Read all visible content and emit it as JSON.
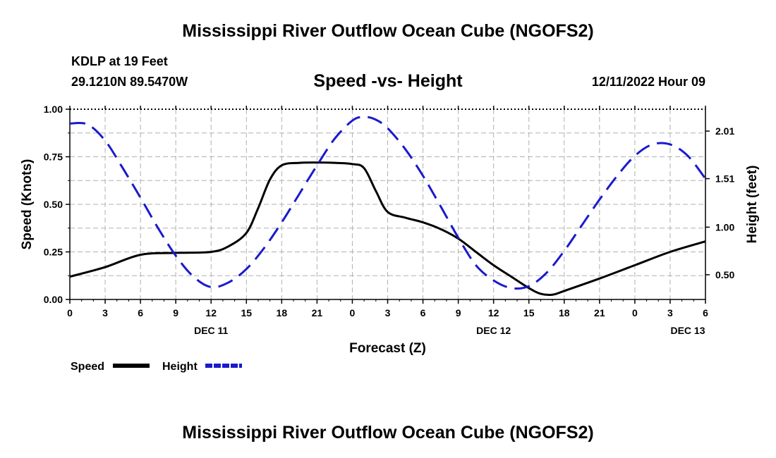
{
  "header": {
    "title": "Mississippi River Outflow Ocean Cube (NGOFS2)",
    "station": "KDLP at 19 Feet",
    "coordinates": "29.1210N  89.5470W",
    "subtitle": "Speed -vs- Height",
    "timestamp": "12/11/2022 Hour 09"
  },
  "footer": {
    "title": "Mississippi River Outflow Ocean Cube (NGOFS2)"
  },
  "colors": {
    "speed": "#000000",
    "height": "#1a1acc",
    "grid": "#b0b0b0"
  },
  "chart_data": {
    "type": "line",
    "title": "Speed -vs- Height",
    "xlabel": "Forecast (Z)",
    "ylabel_left": "Speed (Knots)",
    "ylabel_right": "Height (feet)",
    "xlim": [
      0,
      54
    ],
    "ylim_left": [
      0,
      1.0
    ],
    "ylim_right": [
      0.24,
      2.24
    ],
    "grid": true,
    "x_ticks": [
      0,
      3,
      6,
      9,
      12,
      15,
      18,
      21,
      24,
      27,
      30,
      33,
      36,
      39,
      42,
      45,
      48,
      51,
      54
    ],
    "x_tick_labels": [
      "0",
      "3",
      "6",
      "9",
      "12",
      "15",
      "18",
      "21",
      "0",
      "3",
      "6",
      "9",
      "12",
      "15",
      "18",
      "21",
      "0",
      "3",
      "6"
    ],
    "day_labels": [
      {
        "x": 12,
        "label": "DEC 11"
      },
      {
        "x": 36,
        "label": "DEC 12"
      },
      {
        "x": 52.5,
        "label": "DEC 13"
      }
    ],
    "y_left_ticks": [
      0,
      0.25,
      0.5,
      0.75,
      1.0
    ],
    "y_left_tick_labels": [
      "0.00",
      "0.25",
      "0.50",
      "0.75",
      "1.00"
    ],
    "y_right_ticks": [
      0.5,
      1.0,
      1.51,
      2.01
    ],
    "y_right_tick_labels": [
      "0.50",
      "1.00",
      "1.51",
      "2.01"
    ],
    "legend": [
      {
        "name": "Speed",
        "style": "solid"
      },
      {
        "name": "Height",
        "style": "dashed"
      }
    ],
    "series": [
      {
        "name": "Speed",
        "axis": "left",
        "style": "solid",
        "x": [
          0,
          3,
          6,
          9,
          12,
          13.5,
          15,
          16,
          17,
          18,
          19.5,
          21,
          22.5,
          24,
          25,
          26,
          27,
          28.5,
          30,
          31.5,
          33,
          34.5,
          36,
          37.5,
          39,
          40,
          41,
          42,
          45,
          48,
          51,
          54
        ],
        "values": [
          0.12,
          0.17,
          0.235,
          0.245,
          0.25,
          0.28,
          0.35,
          0.48,
          0.63,
          0.705,
          0.718,
          0.72,
          0.718,
          0.712,
          0.69,
          0.57,
          0.46,
          0.43,
          0.405,
          0.37,
          0.32,
          0.25,
          0.18,
          0.12,
          0.06,
          0.03,
          0.025,
          0.045,
          0.11,
          0.18,
          0.25,
          0.305
        ]
      },
      {
        "name": "Height",
        "axis": "right",
        "style": "dashed",
        "x": [
          0,
          1.5,
          3,
          4.5,
          6,
          7.5,
          9,
          10.5,
          12,
          13.5,
          15,
          16.5,
          18,
          19.5,
          21,
          22.5,
          24,
          25,
          26,
          27,
          28.5,
          30,
          31.5,
          33,
          34.5,
          36,
          37.5,
          39,
          40.5,
          42,
          43.5,
          45,
          46.5,
          48,
          49.5,
          51,
          52.5,
          54
        ],
        "values": [
          2.09,
          2.08,
          1.91,
          1.62,
          1.31,
          0.99,
          0.7,
          0.48,
          0.37,
          0.42,
          0.56,
          0.78,
          1.05,
          1.35,
          1.65,
          1.93,
          2.12,
          2.16,
          2.13,
          2.04,
          1.82,
          1.54,
          1.22,
          0.89,
          0.6,
          0.44,
          0.36,
          0.38,
          0.52,
          0.75,
          1.02,
          1.29,
          1.54,
          1.75,
          1.87,
          1.87,
          1.75,
          1.51
        ]
      }
    ]
  }
}
